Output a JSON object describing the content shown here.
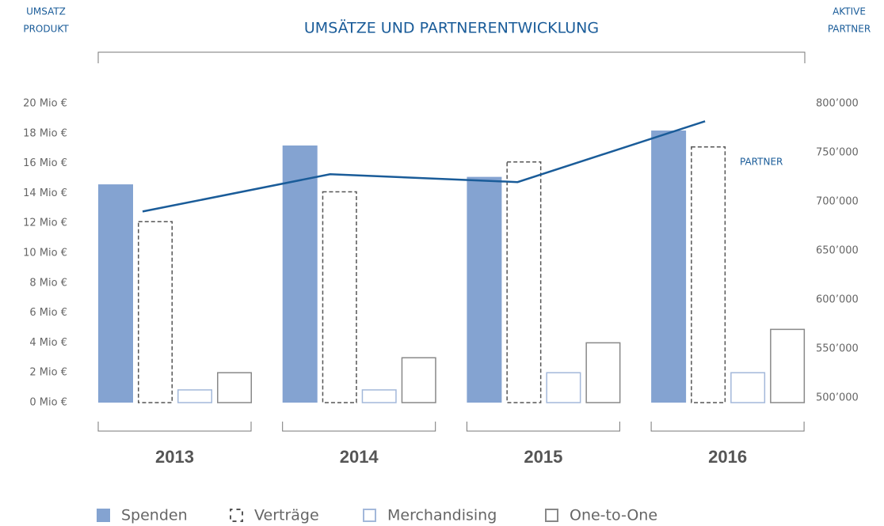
{
  "chart_data": {
    "type": "bar",
    "title": "UMSÄTZE UND PARTNERENTWICKLUNG",
    "y_label": [
      "UMSATZ",
      "PRODUKT"
    ],
    "y2_label": [
      "AKTIVE",
      "PARTNER"
    ],
    "categories": [
      "2013",
      "2014",
      "2015",
      "2016"
    ],
    "ylim": [
      0,
      20
    ],
    "yticks": [
      {
        "value": 0,
        "label": "0 Mio €"
      },
      {
        "value": 2,
        "label": "2 Mio €"
      },
      {
        "value": 4,
        "label": "4 Mio €"
      },
      {
        "value": 6,
        "label": "6 Mio €"
      },
      {
        "value": 8,
        "label": "8 Mio €"
      },
      {
        "value": 10,
        "label": "10 Mio €"
      },
      {
        "value": 12,
        "label": "12 Mio €"
      },
      {
        "value": 14,
        "label": "14 Mio €"
      },
      {
        "value": 16,
        "label": "16 Mio €"
      },
      {
        "value": 18,
        "label": "18 Mio €"
      },
      {
        "value": 20,
        "label": "20 Mio €"
      }
    ],
    "y2lim": [
      500000,
      800000
    ],
    "y2ticks": [
      {
        "value": 500000,
        "label": "500’000"
      },
      {
        "value": 550000,
        "label": "550’000"
      },
      {
        "value": 600000,
        "label": "600’000"
      },
      {
        "value": 650000,
        "label": "650’000"
      },
      {
        "value": 700000,
        "label": "700’000"
      },
      {
        "value": 750000,
        "label": "750’000"
      },
      {
        "value": 800000,
        "label": "800’000"
      }
    ],
    "series": [
      {
        "name": "Spenden",
        "color": "#84a3d1",
        "style": "filled",
        "values": [
          14.6,
          17.2,
          15.1,
          18.2
        ]
      },
      {
        "name": "Verträge",
        "color": "#555555",
        "style": "dashed",
        "values": [
          12.1,
          14.1,
          16.1,
          17.1
        ]
      },
      {
        "name": "Merchandising",
        "color": "#a3b8da",
        "style": "outline",
        "values": [
          0.85,
          0.85,
          2.0,
          2.0
        ]
      },
      {
        "name": "One-to-One",
        "color": "#888888",
        "style": "outline",
        "values": [
          2.0,
          3.0,
          4.0,
          4.9
        ]
      },
      {
        "name": "PARTNER",
        "color": "#1a5c99",
        "type": "line",
        "axis": "y2",
        "values": [
          690000,
          728000,
          720000,
          782000
        ]
      }
    ],
    "grid": false
  }
}
